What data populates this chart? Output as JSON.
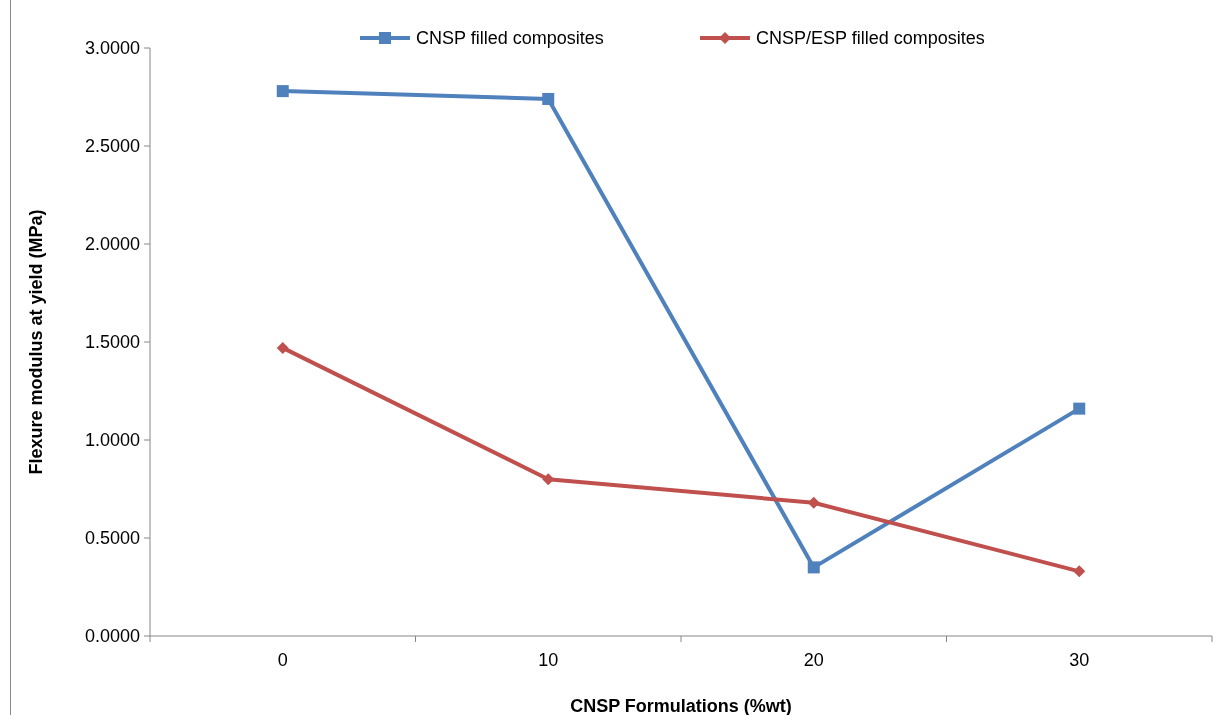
{
  "chart_data": {
    "type": "line",
    "xlabel": "CNSP Formulations  (%wt)",
    "ylabel": "Flexure modulus at yield (MPa)",
    "categories": [
      "0",
      "10",
      "20",
      "30"
    ],
    "series": [
      {
        "name": "CNSP filled composites",
        "color": "#4f81bd",
        "marker": "square",
        "values": [
          2.78,
          2.74,
          0.35,
          1.16
        ]
      },
      {
        "name": "CNSP/ESP filled composites",
        "color": "#c0504d",
        "marker": "diamond",
        "values": [
          1.47,
          0.8,
          0.68,
          0.33
        ]
      }
    ],
    "ylim": [
      0,
      3
    ],
    "yticks": [
      {
        "value": 0,
        "label": "0.0000"
      },
      {
        "value": 0.5,
        "label": "0.5000"
      },
      {
        "value": 1,
        "label": "1.0000"
      },
      {
        "value": 1.5,
        "label": "1.5000"
      },
      {
        "value": 2,
        "label": "2.0000"
      },
      {
        "value": 2.5,
        "label": "2.5000"
      },
      {
        "value": 3,
        "label": "3.0000"
      }
    ],
    "grid": false,
    "legend": "top",
    "line_style": "solid"
  }
}
